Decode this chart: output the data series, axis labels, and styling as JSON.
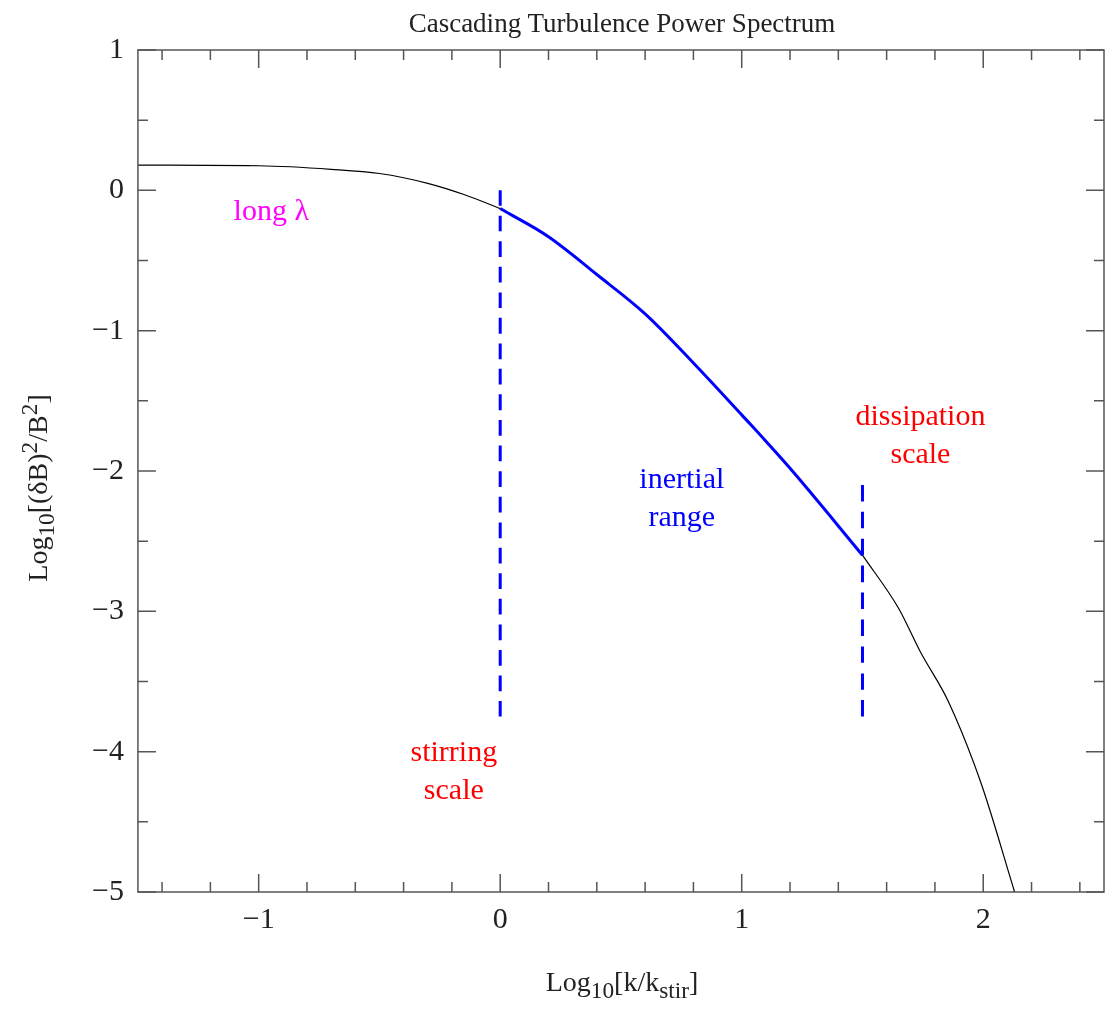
{
  "chart_data": {
    "type": "line",
    "title": "Cascading Turbulence Power Spectrum",
    "xlabel": "Log$_{10}$[k/k$_{stir}$]",
    "ylabel": "Log$_{10}$[(δB)$^{2}$/B$^{2}$]",
    "series": [
      {
        "color": "#000000",
        "x": [
          -1.5,
          -1.0,
          -0.7,
          -0.5,
          -0.3,
          -0.15,
          0
        ],
        "values": [
          0.18,
          0.175,
          0.15,
          0.12,
          0.05,
          -0.03,
          -0.13
        ]
      },
      {
        "color": "#0000ff",
        "x": [
          0,
          0.2,
          0.4,
          0.6,
          0.8,
          1.0,
          1.2,
          1.5
        ],
        "values": [
          -0.13,
          -0.33,
          -0.6,
          -0.88,
          -1.23,
          -1.6,
          -1.98,
          -2.6
        ]
      },
      {
        "color": "#000000",
        "x": [
          1.5,
          1.65,
          1.74,
          1.855,
          1.99,
          2.13
        ],
        "values": [
          -2.6,
          -2.98,
          -3.29,
          -3.64,
          -4.22,
          -5.0
        ]
      },
      {
        "color": "#0000ff",
        "line_style": "dashed",
        "x": [
          0,
          0
        ],
        "values": [
          0,
          -3.75
        ]
      },
      {
        "color": "#0000ff",
        "line_style": "dashed",
        "x": [
          1.5,
          1.5
        ],
        "values": [
          -2.1,
          -3.75
        ]
      }
    ],
    "annotations": [
      "long λ",
      "stirring\nscale",
      "inertial\nrange",
      "dissipation\nscale"
    ],
    "xlim": [
      -1.5,
      2.5
    ],
    "ylim": [
      -5,
      1
    ],
    "xticks": [
      {
        "value": -1.4,
        "label": null
      },
      {
        "value": -1.2,
        "label": null
      },
      -1,
      {
        "value": -0.8,
        "label": null
      },
      {
        "value": -0.6,
        "label": null
      },
      {
        "value": -0.4,
        "label": null
      },
      {
        "value": -0.2,
        "label": null
      },
      0,
      {
        "value": 0.2,
        "label": null
      },
      {
        "value": 0.4,
        "label": null
      },
      {
        "value": 0.6,
        "label": null
      },
      {
        "value": 0.8,
        "label": null
      },
      1,
      {
        "value": 1.2,
        "label": null
      },
      {
        "value": 1.4,
        "label": null
      },
      {
        "value": 1.6,
        "label": null
      },
      {
        "value": 1.8,
        "label": null
      },
      2,
      {
        "value": 2.2,
        "label": null
      },
      {
        "value": 2.4,
        "label": null
      }
    ],
    "yticks": [
      -5,
      {
        "value": -4.5,
        "label": null
      },
      -4,
      {
        "value": -3.5,
        "label": null
      },
      -3,
      {
        "value": -2.5,
        "label": null
      },
      -2,
      {
        "value": -1.5,
        "label": null
      },
      -1,
      {
        "value": -0.5,
        "label": null
      },
      0,
      {
        "value": 0.5,
        "label": null
      },
      1
    ],
    "grid": false,
    "legend": false,
    "marker": "none",
    "line_style": "solid"
  }
}
